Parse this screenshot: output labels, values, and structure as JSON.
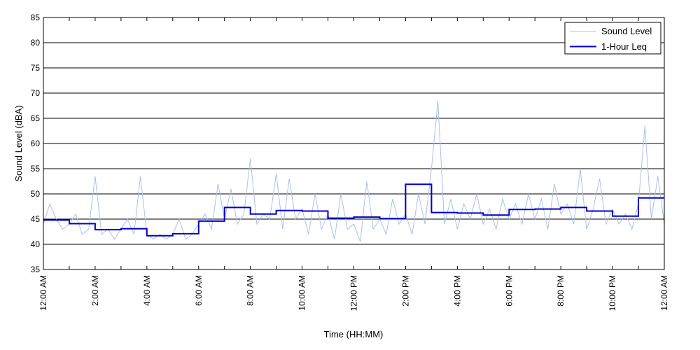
{
  "chart_data": {
    "type": "line",
    "title": "",
    "xlabel": "Time (HH:MM)",
    "ylabel": "Sound Level (dBA)",
    "ylim": [
      35,
      85
    ],
    "xlim": [
      0,
      24
    ],
    "x_unit": "hours after 12:00 AM",
    "y_ticks": [
      "35",
      "40",
      "45",
      "50",
      "55",
      "60",
      "65",
      "70",
      "75",
      "80",
      "85"
    ],
    "x_tick_labels": [
      "12:00 AM",
      "2:00 AM",
      "4:00 AM",
      "6:00 AM",
      "8:00 AM",
      "10:00 AM",
      "12:00 PM",
      "2:00 PM",
      "4:00 PM",
      "6:00 PM",
      "8:00 PM",
      "10:00 PM",
      "12:00 AM"
    ],
    "grid": "horizontal",
    "legend": "top-right",
    "legend_labels": [
      "Sound Level",
      "1-Hour Leq"
    ],
    "colors": {
      "sound_level": "#a9c0ee",
      "leq": "#0000cc"
    },
    "series": [
      {
        "name": "Sound Level",
        "x": [
          0.0,
          0.25,
          0.5,
          0.75,
          1.0,
          1.25,
          1.5,
          1.75,
          2.0,
          2.25,
          2.5,
          2.75,
          3.0,
          3.25,
          3.5,
          3.75,
          4.0,
          4.25,
          4.5,
          4.75,
          5.0,
          5.25,
          5.5,
          5.75,
          6.0,
          6.25,
          6.5,
          6.75,
          7.0,
          7.25,
          7.5,
          7.75,
          8.0,
          8.25,
          8.5,
          8.75,
          9.0,
          9.25,
          9.5,
          9.75,
          10.0,
          10.25,
          10.5,
          10.75,
          11.0,
          11.25,
          11.5,
          11.75,
          12.0,
          12.25,
          12.5,
          12.75,
          13.0,
          13.25,
          13.5,
          13.75,
          14.0,
          14.25,
          14.5,
          14.75,
          15.0,
          15.25,
          15.5,
          15.75,
          16.0,
          16.25,
          16.5,
          16.75,
          17.0,
          17.25,
          17.5,
          17.75,
          18.0,
          18.25,
          18.5,
          18.75,
          19.0,
          19.25,
          19.5,
          19.75,
          20.0,
          20.25,
          20.5,
          20.75,
          21.0,
          21.25,
          21.5,
          21.75,
          22.0,
          22.25,
          22.5,
          22.75,
          23.0,
          23.25,
          23.5,
          23.75,
          24.0
        ],
        "values": [
          44,
          48,
          45,
          43,
          44,
          46,
          42,
          43,
          53.5,
          42,
          43,
          41,
          43,
          45,
          42,
          53.5,
          42,
          41,
          42,
          41,
          42,
          45,
          41,
          42,
          44,
          46,
          43,
          52,
          45,
          51,
          44,
          46,
          57,
          44,
          46,
          45,
          54,
          43,
          53,
          45,
          47,
          42,
          50,
          43,
          46,
          41,
          50,
          43,
          44,
          40.5,
          52.5,
          43,
          45,
          42,
          49,
          44,
          46,
          42,
          50,
          44,
          55,
          68.5,
          44,
          49,
          43,
          48,
          45,
          50,
          44,
          47,
          43,
          49,
          45,
          48,
          44,
          50,
          45,
          49,
          43,
          52,
          46,
          48,
          44,
          55,
          43,
          47,
          53,
          44,
          47,
          44,
          46,
          43,
          48,
          63.5,
          45,
          53.5,
          44
        ]
      },
      {
        "name": "1-Hour Leq",
        "x": [
          0,
          1,
          2,
          3,
          4,
          5,
          6,
          7,
          8,
          9,
          10,
          11,
          12,
          13,
          14,
          15,
          16,
          17,
          18,
          19,
          20,
          21,
          22,
          23
        ],
        "values": [
          44.8,
          44.1,
          42.9,
          43.1,
          41.7,
          42.1,
          44.6,
          47.3,
          46.0,
          46.7,
          46.6,
          45.2,
          45.4,
          45.1,
          51.9,
          46.3,
          46.2,
          45.8,
          46.9,
          47.0,
          47.3,
          46.6,
          45.6,
          49.2
        ]
      }
    ]
  }
}
